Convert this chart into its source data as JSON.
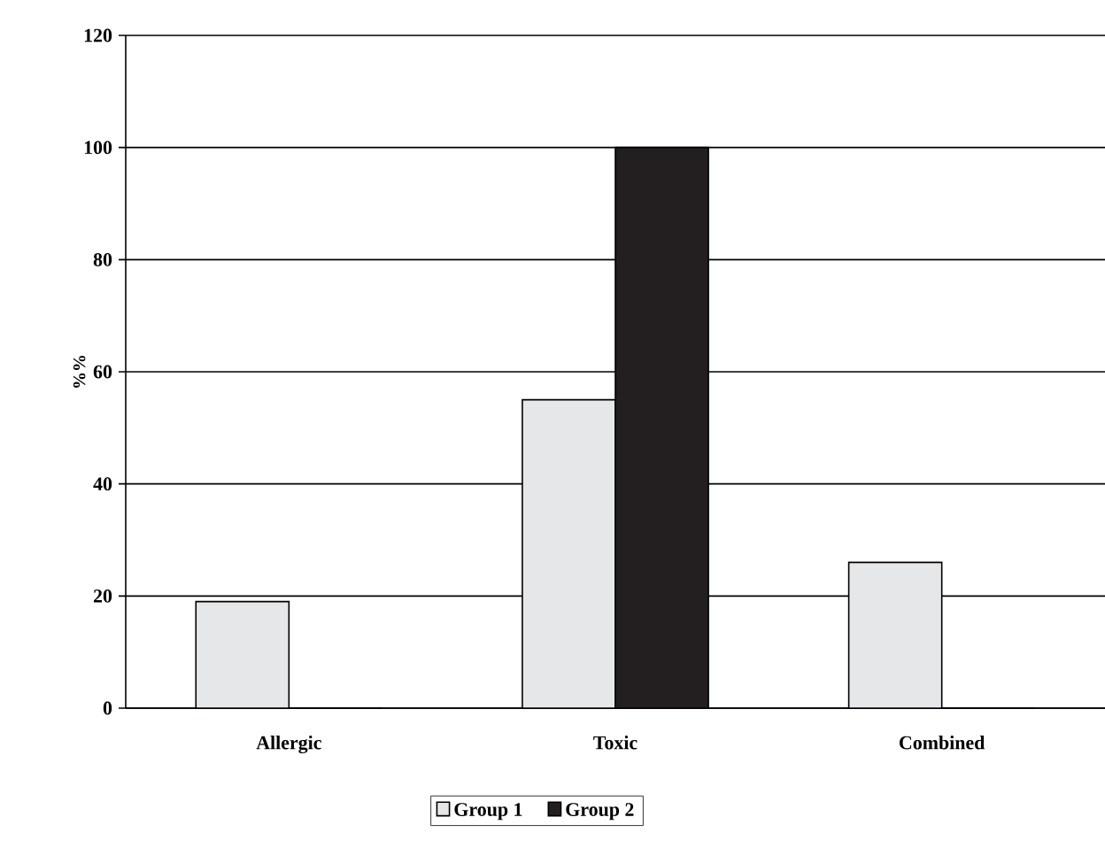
{
  "chart_data": {
    "type": "bar",
    "ylabel": "%%",
    "categories": [
      "Allergic",
      "Toxic",
      "Combined"
    ],
    "series": [
      {
        "name": "Group 1",
        "color": "#e6e7e8",
        "values": [
          19,
          55,
          26
        ]
      },
      {
        "name": "Group 2",
        "color": "#231f20",
        "values": [
          0,
          100,
          0
        ]
      }
    ],
    "ylim": [
      0,
      120
    ],
    "yticks": [
      0,
      20,
      40,
      60,
      80,
      100,
      120
    ],
    "grid": "y",
    "legend": "bottom"
  }
}
